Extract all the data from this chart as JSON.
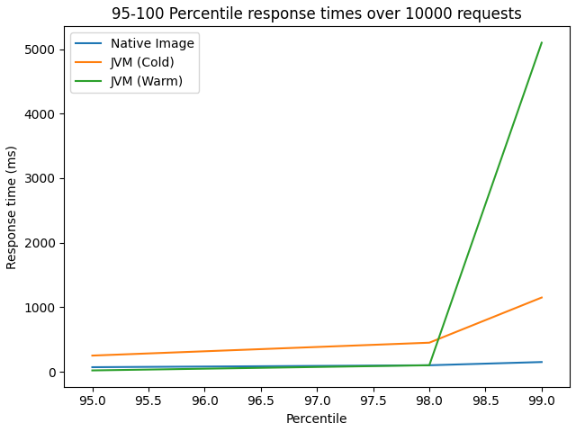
{
  "title": "95-100 Percentile response times over 10000 requests",
  "xlabel": "Percentile",
  "ylabel": "Response time (ms)",
  "x": [
    95.0,
    98.0,
    99.0
  ],
  "series": [
    {
      "label": "Native Image",
      "color": "#1f77b4",
      "values": [
        70,
        100,
        150
      ]
    },
    {
      "label": "JVM (Cold)",
      "color": "#ff7f0e",
      "values": [
        250,
        450,
        1150
      ]
    },
    {
      "label": "JVM (Warm)",
      "color": "#2ca02c",
      "values": [
        20,
        100,
        5100
      ]
    }
  ],
  "xlim": [
    94.75,
    99.25
  ],
  "xticks": [
    95.0,
    95.5,
    96.0,
    96.5,
    97.0,
    97.5,
    98.0,
    98.5,
    99.0
  ],
  "legend_loc": "upper left",
  "figsize": [
    6.4,
    4.8
  ],
  "dpi": 100,
  "title_fontsize": 12,
  "label_fontsize": 10,
  "legend_fontsize": 10
}
